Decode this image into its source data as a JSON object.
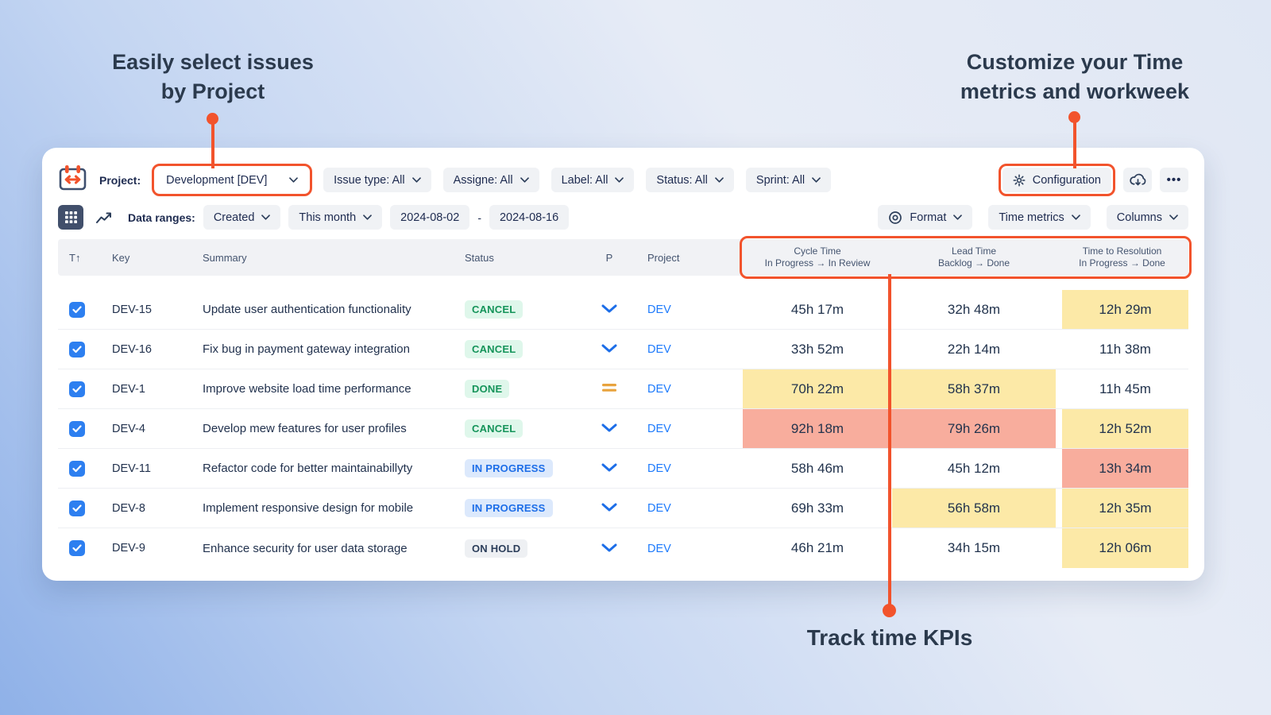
{
  "annotations": {
    "select_issues_line1": "Easily select issues",
    "select_issues_line2": "by Project",
    "customize_line1": "Customize your Time",
    "customize_line2": "metrics and workweek",
    "track_kpis": "Track time KPIs"
  },
  "toolbar": {
    "project_label": "Project:",
    "project_value": "Development [DEV]",
    "filters": [
      {
        "id": "issue-type",
        "label": "Issue type: All"
      },
      {
        "id": "assignee",
        "label": "Assigne: All"
      },
      {
        "id": "label",
        "label": "Label: All"
      },
      {
        "id": "status",
        "label": "Status: All"
      },
      {
        "id": "sprint",
        "label": "Sprint: All"
      }
    ],
    "configuration_label": "Configuration",
    "more_label": "•••"
  },
  "subtoolbar": {
    "data_ranges_label": "Data ranges:",
    "created_value": "Created",
    "period_value": "This month",
    "date_from": "2024-08-02",
    "date_separator": "-",
    "date_to": "2024-08-16",
    "format_label": "Format",
    "time_metrics_label": "Time metrics",
    "columns_label": "Columns"
  },
  "table": {
    "headers": {
      "type": "T",
      "sort_arrow": "↑",
      "key": "Key",
      "summary": "Summary",
      "status": "Status",
      "priority": "P",
      "project": "Project",
      "cycle_title": "Cycle Time",
      "cycle_sub": "In Progress → In Review",
      "lead_title": "Lead Time",
      "lead_sub": "Backlog → Done",
      "resolution_title": "Time to Resolution",
      "resolution_sub": "In Progress → Done"
    },
    "rows": [
      {
        "key": "DEV-15",
        "summary": "Update user authentication functionality",
        "status": {
          "label": "CANCEL",
          "type": "green"
        },
        "priority": "low",
        "project": "DEV",
        "cycle": {
          "value": "45h 17m",
          "highlight": "none"
        },
        "lead": {
          "value": "32h 48m",
          "highlight": "none"
        },
        "resolution": {
          "value": "12h 29m",
          "highlight": "yellow"
        },
        "checked": true
      },
      {
        "key": "DEV-16",
        "summary": "Fix bug in payment gateway integration",
        "status": {
          "label": "CANCEL",
          "type": "green"
        },
        "priority": "low",
        "project": "DEV",
        "cycle": {
          "value": "33h 52m",
          "highlight": "none"
        },
        "lead": {
          "value": "22h 14m",
          "highlight": "none"
        },
        "resolution": {
          "value": "11h 38m",
          "highlight": "none"
        },
        "checked": true
      },
      {
        "key": "DEV-1",
        "summary": "Improve website load time performance",
        "status": {
          "label": "DONE",
          "type": "green"
        },
        "priority": "medium",
        "project": "DEV",
        "cycle": {
          "value": "70h 22m",
          "highlight": "yellow"
        },
        "lead": {
          "value": "58h 37m",
          "highlight": "yellow"
        },
        "resolution": {
          "value": "11h 45m",
          "highlight": "none"
        },
        "checked": true
      },
      {
        "key": "DEV-4",
        "summary": "Develop mew features for user profiles",
        "status": {
          "label": "CANCEL",
          "type": "green"
        },
        "priority": "low",
        "project": "DEV",
        "cycle": {
          "value": "92h 18m",
          "highlight": "red"
        },
        "lead": {
          "value": "79h 26m",
          "highlight": "red"
        },
        "resolution": {
          "value": "12h 52m",
          "highlight": "yellow"
        },
        "checked": true
      },
      {
        "key": "DEV-11",
        "summary": "Refactor code for better maintainabillyty",
        "status": {
          "label": "IN PROGRESS",
          "type": "blue"
        },
        "priority": "low",
        "project": "DEV",
        "cycle": {
          "value": "58h 46m",
          "highlight": "none"
        },
        "lead": {
          "value": "45h 12m",
          "highlight": "none"
        },
        "resolution": {
          "value": "13h 34m",
          "highlight": "red"
        },
        "checked": true
      },
      {
        "key": "DEV-8",
        "summary": "Implement responsive design for mobile",
        "status": {
          "label": "IN PROGRESS",
          "type": "blue"
        },
        "priority": "low",
        "project": "DEV",
        "cycle": {
          "value": "69h 33m",
          "highlight": "none"
        },
        "lead": {
          "value": "56h 58m",
          "highlight": "yellow"
        },
        "resolution": {
          "value": "12h 35m",
          "highlight": "yellow"
        },
        "checked": true
      },
      {
        "key": "DEV-9",
        "summary": "Enhance security for user data storage",
        "status": {
          "label": "ON HOLD",
          "type": "gray"
        },
        "priority": "low",
        "project": "DEV",
        "cycle": {
          "value": "46h 21m",
          "highlight": "none"
        },
        "lead": {
          "value": "34h 15m",
          "highlight": "none"
        },
        "resolution": {
          "value": "12h 06m",
          "highlight": "yellow"
        },
        "checked": true
      }
    ]
  },
  "colors": {
    "accent": "#F2532C",
    "highlights": {
      "yellow": "#FCE9A7",
      "red": "#F8AD9D",
      "none": "transparent"
    },
    "link_blue": "#1D7AFC",
    "priority_low": "#1D6EE8",
    "priority_medium": "#E8A33D"
  },
  "icons": {
    "logo": "calendar-range-icon",
    "configuration": "gear-icon",
    "export": "cloud-download-icon",
    "more": "ellipsis-icon",
    "grid_view": "grid-view-icon",
    "chart_view": "chart-trend-icon",
    "format": "eye-icon",
    "priority_low": "chevron-down-icon",
    "priority_medium": "equals-icon",
    "checkbox": "check-icon"
  }
}
